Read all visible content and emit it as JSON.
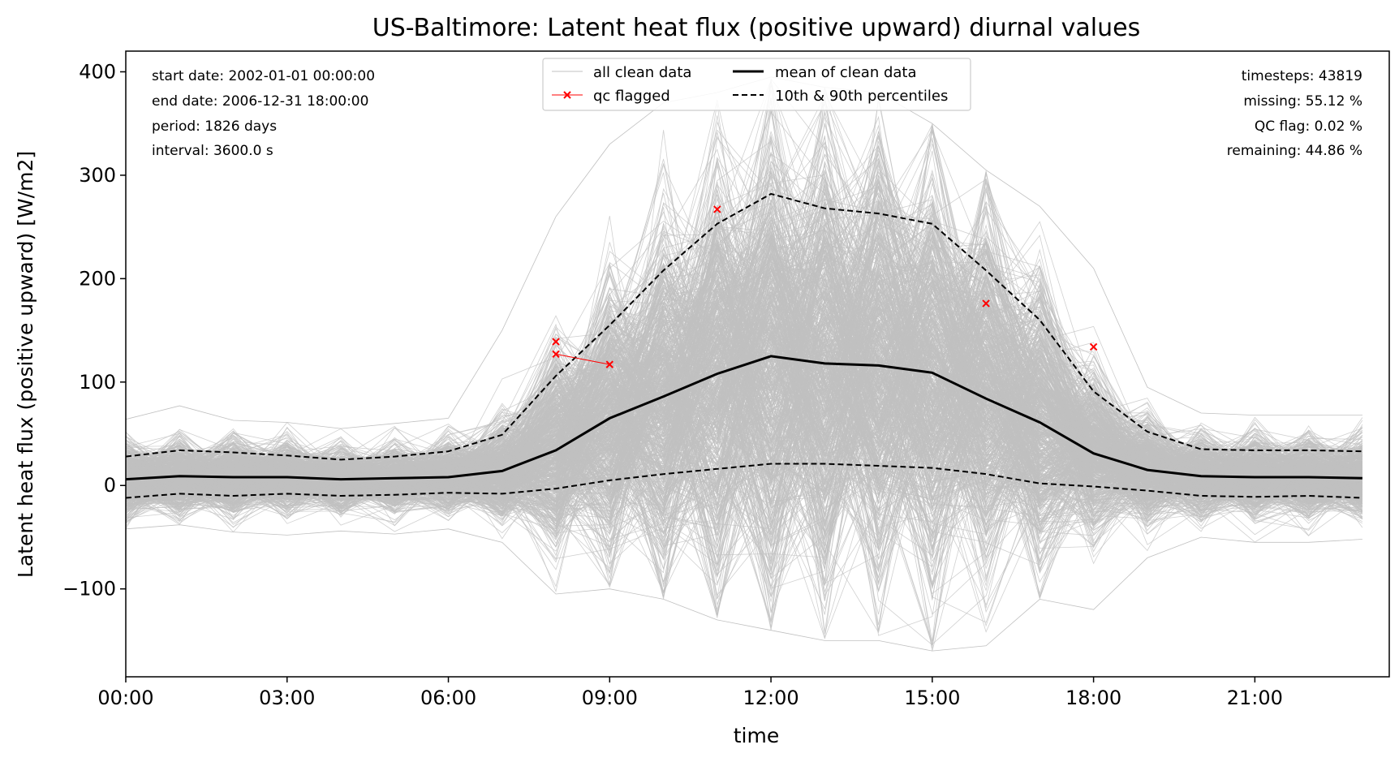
{
  "chart_data": {
    "type": "line",
    "title": "US-Baltimore: Latent heat flux (positive upward) diurnal values",
    "xlabel": "time",
    "ylabel": "Latent heat flux (positive upward) [W/m2]",
    "x_hours": [
      0,
      1,
      2,
      3,
      4,
      5,
      6,
      7,
      8,
      9,
      10,
      11,
      12,
      13,
      14,
      15,
      16,
      17,
      18,
      19,
      20,
      21,
      22,
      23
    ],
    "xlim": [
      0,
      23.5
    ],
    "ylim": [
      -185,
      420
    ],
    "x_ticks": [
      0,
      3,
      6,
      9,
      12,
      15,
      18,
      21
    ],
    "x_tick_labels": [
      "00:00",
      "03:00",
      "06:00",
      "09:00",
      "12:00",
      "15:00",
      "18:00",
      "21:00"
    ],
    "y_ticks": [
      -100,
      0,
      100,
      200,
      300,
      400
    ],
    "y_tick_labels": [
      "−100",
      "0",
      "100",
      "200",
      "300",
      "400"
    ],
    "grid": false,
    "legend": {
      "placement": "top-center",
      "entries": [
        {
          "label": "all clean data",
          "color": "#c0c0c0",
          "style": "thin"
        },
        {
          "label": "qc flagged",
          "color": "#ff0000",
          "style": "x-marker"
        },
        {
          "label": "mean of clean data",
          "color": "#000000",
          "style": "solid"
        },
        {
          "label": "10th & 90th percentiles",
          "color": "#000000",
          "style": "dashed"
        }
      ]
    },
    "series": [
      {
        "name": "mean of clean data",
        "color": "#000000",
        "values": [
          6,
          9,
          8,
          8,
          6,
          7,
          8,
          14,
          34,
          65,
          86,
          108,
          125,
          118,
          116,
          109,
          84,
          61,
          31,
          15,
          9,
          8,
          8,
          7
        ]
      },
      {
        "name": "10th & 90th percentiles",
        "color": "#000000",
        "dashed": true,
        "upper_values": [
          28,
          34,
          32,
          29,
          25,
          28,
          33,
          49,
          106,
          155,
          208,
          253,
          282,
          268,
          263,
          253,
          208,
          160,
          91,
          52,
          35,
          34,
          34,
          33
        ],
        "lower_values": [
          -12,
          -8,
          -10,
          -8,
          -10,
          -9,
          -7,
          -8,
          -3,
          5,
          11,
          16,
          21,
          21,
          19,
          17,
          11,
          2,
          -1,
          -5,
          -10,
          -11,
          -10,
          -12
        ]
      },
      {
        "name": "qc flagged",
        "color": "#ff0000",
        "points": [
          {
            "x": 8,
            "y": 139
          },
          {
            "x": 8,
            "y": 127
          },
          {
            "x": 9,
            "y": 117
          },
          {
            "x": 11,
            "y": 267
          },
          {
            "x": 16,
            "y": 176
          },
          {
            "x": 18,
            "y": 134
          }
        ],
        "segment": [
          {
            "x": 8,
            "y": 127
          },
          {
            "x": 9,
            "y": 117
          }
        ]
      }
    ],
    "clean_data_band": {
      "name": "all clean data",
      "color": "#c0c0c0",
      "max_values": [
        64,
        77,
        63,
        61,
        55,
        60,
        65,
        150,
        260,
        330,
        370,
        380,
        395,
        385,
        380,
        350,
        305,
        270,
        210,
        95,
        70,
        68,
        68,
        68
      ],
      "min_values": [
        -42,
        -38,
        -45,
        -48,
        -44,
        -47,
        -42,
        -55,
        -105,
        -100,
        -110,
        -130,
        -140,
        -150,
        -150,
        -160,
        -155,
        -110,
        -120,
        -70,
        -50,
        -55,
        -55,
        -52
      ]
    },
    "info_left": [
      "start date: 2002-01-01 00:00:00",
      "end date: 2006-12-31 18:00:00",
      "period: 1826 days",
      "interval: 3600.0 s"
    ],
    "info_right": [
      "timesteps: 43819",
      "missing: 55.12 %",
      "QC flag: 0.02 %",
      "remaining: 44.86 %"
    ]
  }
}
